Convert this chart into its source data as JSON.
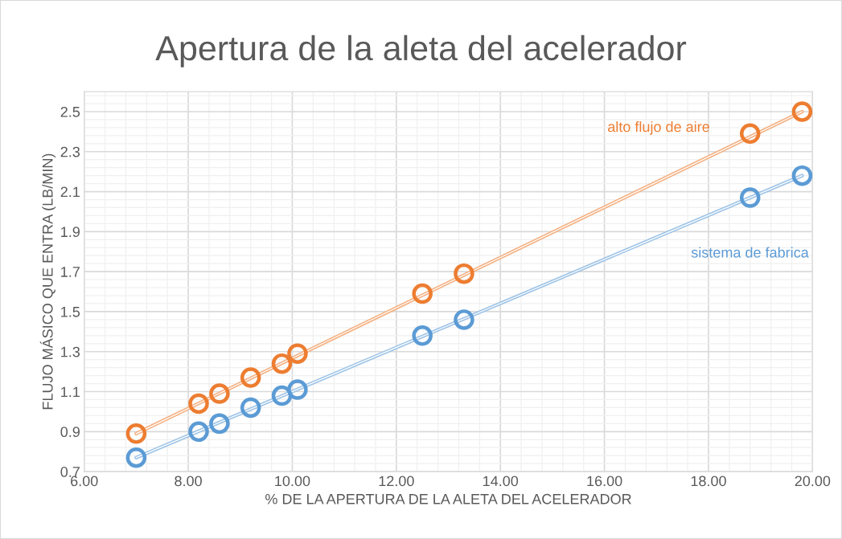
{
  "chart_data": {
    "type": "scatter",
    "title": "Apertura de la aleta del acelerador",
    "xlabel": "% DE LA APERTURA DE LA ALETA DEL ACELERADOR",
    "ylabel": "FLUJO MÁSICO QUE ENTRA (LB/MIN)",
    "series": [
      {
        "name": "alto flujo de aire",
        "color": "#ed7d31",
        "x": [
          7.0,
          8.2,
          8.6,
          9.2,
          9.8,
          10.1,
          12.5,
          13.3,
          18.8,
          19.8
        ],
        "values": [
          0.89,
          1.04,
          1.09,
          1.17,
          1.24,
          1.29,
          1.59,
          1.69,
          2.39,
          2.5
        ]
      },
      {
        "name": "sistema de fabrica",
        "color": "#5b9bd5",
        "x": [
          7.0,
          8.2,
          8.6,
          9.2,
          9.8,
          10.1,
          12.5,
          13.3,
          18.8,
          19.8
        ],
        "values": [
          0.77,
          0.9,
          0.94,
          1.02,
          1.08,
          1.11,
          1.38,
          1.46,
          2.07,
          2.18
        ]
      },
      {
        "type": "line",
        "marker": "none",
        "color": "#f4b183",
        "x": [
          7.0,
          19.8
        ],
        "values": [
          0.89,
          2.5
        ]
      },
      {
        "type": "line",
        "marker": "none",
        "color": "#9dc3e6",
        "x": [
          7.0,
          19.8
        ],
        "values": [
          0.77,
          2.18
        ]
      }
    ],
    "xlim": [
      6,
      20
    ],
    "xticks": [
      {
        "value": 6,
        "label": "6.00"
      },
      {
        "value": 8,
        "label": "8.00"
      },
      {
        "value": 10,
        "label": "10.00"
      },
      {
        "value": 12,
        "label": "12.00"
      },
      {
        "value": 14,
        "label": "14.00"
      },
      {
        "value": 16,
        "label": "16.00"
      },
      {
        "value": 18,
        "label": "18.00"
      },
      {
        "value": 20,
        "label": "20.00"
      }
    ],
    "ylim": [
      0.7,
      2.6
    ],
    "yticks": [
      0.7,
      0.9,
      1.1,
      1.3,
      1.5,
      1.7,
      1.9,
      2.1,
      2.3,
      2.5
    ],
    "grid": true,
    "marker": "circle",
    "legend": false
  }
}
